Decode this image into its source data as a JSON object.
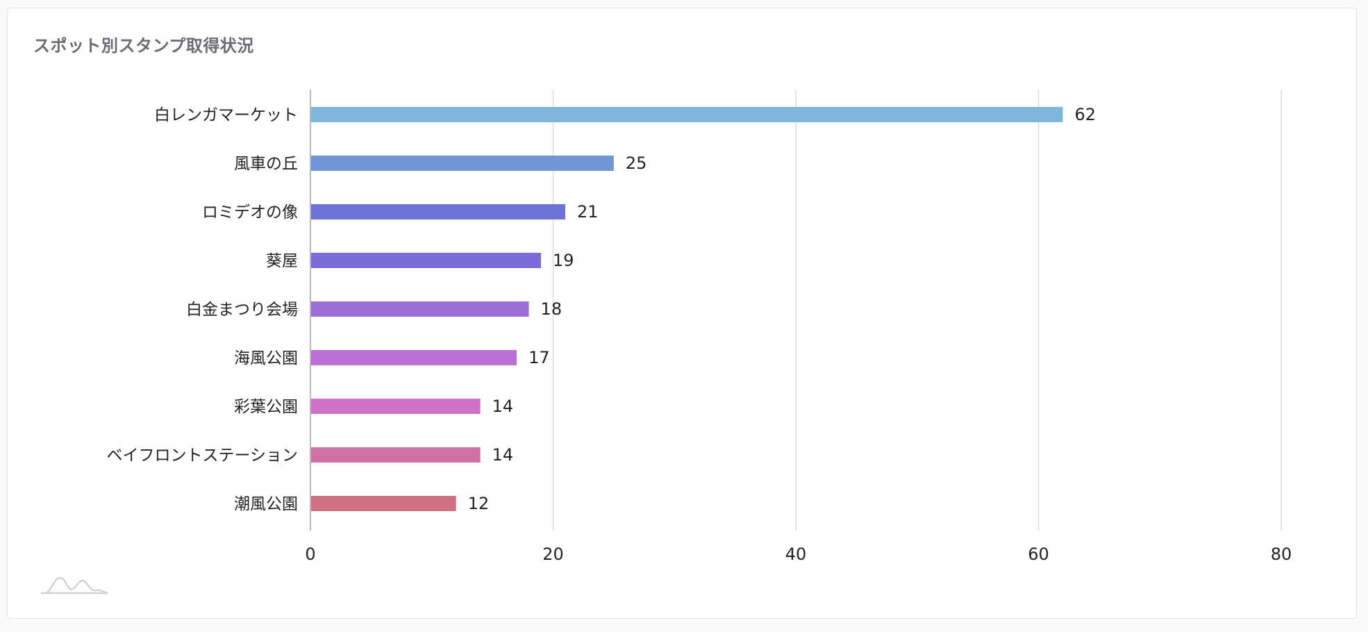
{
  "card": {
    "title": "スポット別スタンプ取得状況"
  },
  "chart_data": {
    "type": "bar",
    "orientation": "horizontal",
    "categories": [
      "白レンガマーケット",
      "風車の丘",
      "ロミデオの像",
      "葵屋",
      "白金まつり会場",
      "海風公園",
      "彩葉公園",
      "ベイフロントステーション",
      "潮風公園"
    ],
    "values": [
      62,
      25,
      21,
      19,
      18,
      17,
      14,
      14,
      12
    ],
    "colors": [
      "#7db8dc",
      "#7096d8",
      "#6c74d8",
      "#7a6cd8",
      "#9c6fd6",
      "#bc6fd6",
      "#cf70c9",
      "#d071a6",
      "#d07083"
    ],
    "xlim": [
      0,
      80
    ],
    "xticks": [
      "0",
      "20",
      "40",
      "60",
      "80"
    ],
    "grid": true,
    "data_labels": true,
    "legend": "none"
  },
  "icons": {
    "watermark": "chart-logo-icon"
  }
}
